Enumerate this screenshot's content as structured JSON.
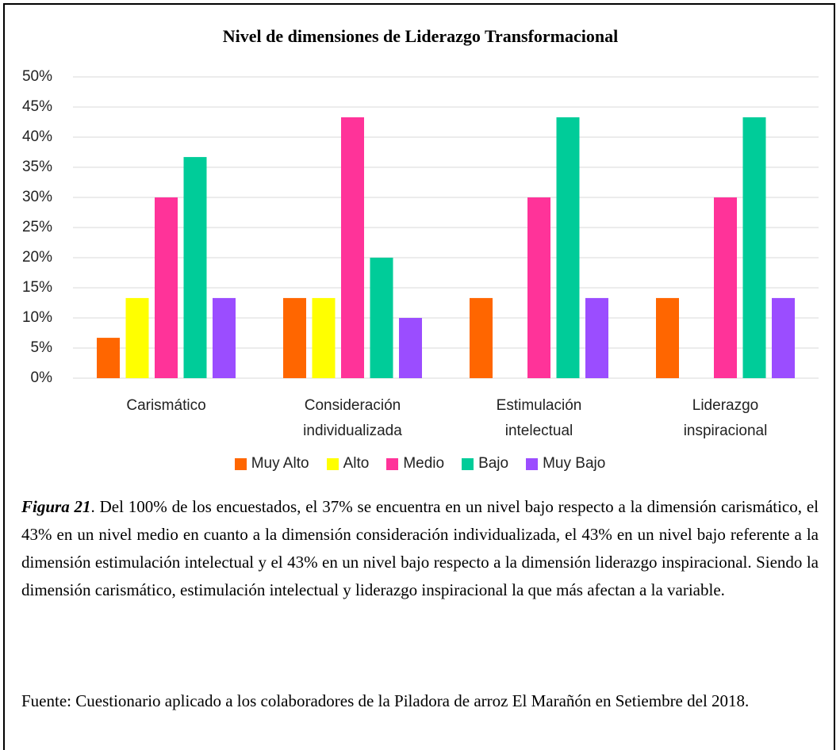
{
  "chart_data": {
    "type": "bar",
    "title": "Nivel de dimensiones de Liderazgo Transformacional",
    "categories": [
      "Carismático",
      "Consideración individualizada",
      "Estimulación intelectual",
      "Liderazgo inspiracional"
    ],
    "series": [
      {
        "name": "Muy Alto",
        "color": "#ff6600",
        "values": [
          6.7,
          13.3,
          13.3,
          13.3
        ]
      },
      {
        "name": "Alto",
        "color": "#ffff00",
        "values": [
          13.3,
          13.3,
          0,
          0
        ]
      },
      {
        "name": "Medio",
        "color": "#ff3399",
        "values": [
          30,
          43.3,
          30,
          30
        ]
      },
      {
        "name": "Bajo",
        "color": "#00cc99",
        "values": [
          36.7,
          20,
          43.3,
          43.3
        ]
      },
      {
        "name": "Muy Bajo",
        "color": "#9b4dff",
        "values": [
          13.3,
          10,
          13.3,
          13.3
        ]
      }
    ],
    "ylim": [
      0,
      50
    ],
    "yticks": [
      {
        "value": 0,
        "label": "0%"
      },
      {
        "value": 5,
        "label": "5%"
      },
      {
        "value": 10,
        "label": "10%"
      },
      {
        "value": 15,
        "label": "15%"
      },
      {
        "value": 20,
        "label": "20%"
      },
      {
        "value": 25,
        "label": "25%"
      },
      {
        "value": 30,
        "label": "30%"
      },
      {
        "value": 35,
        "label": "35%"
      },
      {
        "value": 40,
        "label": "40%"
      },
      {
        "value": 45,
        "label": "45%"
      },
      {
        "value": 50,
        "label": "50%"
      }
    ],
    "grid": true,
    "legend": "bottom"
  },
  "caption": {
    "label": "Figura 21",
    "text": ". Del 100% de los encuestados, el 37% se encuentra en un nivel bajo respecto a la dimensión carismático, el 43% en un nivel medio en cuanto a la dimensión consideración individualizada, el 43% en un nivel bajo referente a la dimensión estimulación intelectual y el 43% en un nivel bajo respecto a la dimensión liderazgo inspiracional. Siendo la dimensión carismático, estimulación intelectual y liderazgo inspiracional la que más afectan a la variable."
  },
  "source": "Fuente: Cuestionario aplicado a los colaboradores de la Piladora de arroz El Marañón en Setiembre del 2018."
}
